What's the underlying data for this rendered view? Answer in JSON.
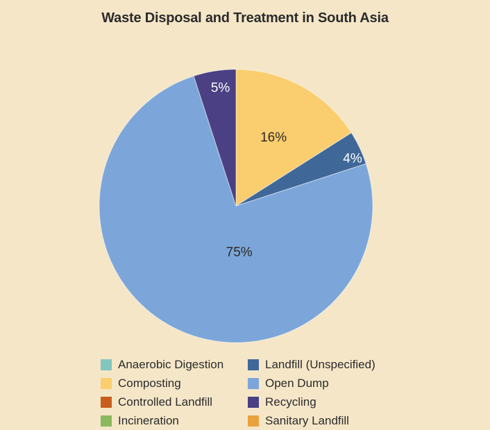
{
  "page": {
    "background_color": "#F5E6C8",
    "text_color": "#2B2B2B"
  },
  "chart_data": {
    "type": "pie",
    "title": "Waste Disposal and Treatment in South Asia",
    "units": "percent",
    "direction": "clockwise",
    "start_angle_deg": 0,
    "slices": [
      {
        "label": "Composting",
        "value": 16,
        "display_label": "16%",
        "color": "#FACD6F",
        "label_color": "#2E2A26"
      },
      {
        "label": "Landfill (Unspecified)",
        "value": 4,
        "display_label": "4%",
        "color": "#3F6898",
        "label_color": "#FFFFFF"
      },
      {
        "label": "Open Dump",
        "value": 75,
        "display_label": "75%",
        "color": "#7CA6D9",
        "label_color": "#2E2A26"
      },
      {
        "label": "Recycling",
        "value": 5,
        "display_label": "5%",
        "color": "#4A4083",
        "label_color": "#FFFFFF"
      }
    ],
    "label_layout": [
      {
        "r_frac": 0.57
      },
      {
        "r_frac": 0.92,
        "angle_deg": 68
      },
      {
        "r_frac": 0.34,
        "angle_deg": 176
      },
      {
        "r_frac": 0.87,
        "angle_deg": 352.5
      }
    ],
    "legend": {
      "position": "bottom",
      "columns": 2,
      "items": [
        {
          "label": "Anaerobic Digestion",
          "color": "#82C6C2"
        },
        {
          "label": "Composting",
          "color": "#FACD6F"
        },
        {
          "label": "Controlled Landfill",
          "color": "#C85E1E"
        },
        {
          "label": "Incineration",
          "color": "#8AB85E"
        },
        {
          "label": "Landfill (Unspecified)",
          "color": "#3F6898"
        },
        {
          "label": "Open Dump",
          "color": "#7CA6D9"
        },
        {
          "label": "Recycling",
          "color": "#4A4083"
        },
        {
          "label": "Sanitary Landfill",
          "color": "#E9A23F"
        }
      ]
    }
  }
}
